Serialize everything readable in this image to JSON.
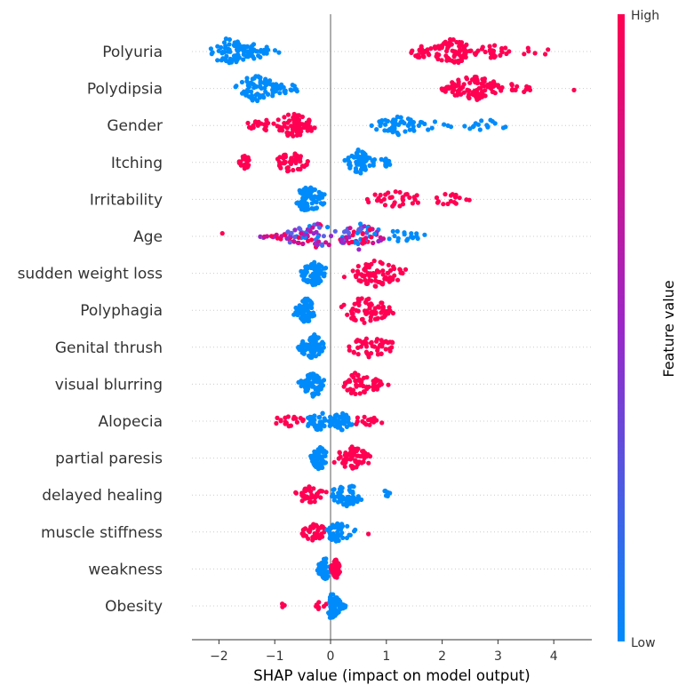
{
  "chart_data": {
    "type": "scatter",
    "subtype": "shap-beeswarm-summary",
    "xlabel": "SHAP value (impact on model output)",
    "xlim": [
      -2.5,
      4.7
    ],
    "xticks": [
      -2,
      -1,
      0,
      1,
      2,
      3,
      4
    ],
    "xtick_labels": [
      "−2",
      "−1",
      "0",
      "1",
      "2",
      "3",
      "4"
    ],
    "zero_line": 0,
    "colorbar": {
      "title": "Feature value",
      "high_label": "High",
      "low_label": "Low",
      "high_color": "#ff0052",
      "mid_color": "#9b27c8",
      "low_color": "#008bfb"
    },
    "features": [
      {
        "name": "Polyuria",
        "clusters": [
          [
            -2.2,
            -1.85,
            -1.2,
            0,
            70
          ],
          [
            -1.65,
            -1.4,
            -0.8,
            0,
            28
          ],
          [
            1.4,
            1.6,
            1.85,
            1,
            22
          ],
          [
            1.8,
            2.2,
            2.7,
            1,
            75
          ],
          [
            2.6,
            2.9,
            3.3,
            1,
            24
          ],
          [
            3.3,
            3.6,
            4.0,
            1,
            6
          ]
        ]
      },
      {
        "name": "Polydipsia",
        "clusters": [
          [
            -1.75,
            -1.35,
            -0.8,
            0,
            70
          ],
          [
            -1.2,
            -0.9,
            -0.55,
            0,
            16
          ],
          [
            1.9,
            2.1,
            2.4,
            1,
            18
          ],
          [
            2.1,
            2.55,
            3.2,
            1,
            85
          ],
          [
            3.1,
            3.3,
            3.7,
            1,
            12
          ],
          [
            4.35,
            4.35,
            4.4,
            1,
            1
          ]
        ]
      },
      {
        "name": "Gender",
        "clusters": [
          [
            -1.55,
            -1.2,
            -0.9,
            1,
            18
          ],
          [
            -1.0,
            -0.65,
            -0.25,
            1,
            75
          ],
          [
            0.7,
            1.2,
            1.6,
            0,
            48
          ],
          [
            1.5,
            1.8,
            2.3,
            0,
            10
          ],
          [
            2.3,
            2.8,
            3.3,
            0,
            16
          ]
        ]
      },
      {
        "name": "Itching",
        "clusters": [
          [
            -1.75,
            -1.55,
            -1.4,
            1,
            22
          ],
          [
            -1.0,
            -0.7,
            -0.35,
            1,
            48
          ],
          [
            0.2,
            0.5,
            0.8,
            0,
            65
          ],
          [
            0.9,
            1.0,
            1.15,
            0,
            10
          ]
        ]
      },
      {
        "name": "Irritability",
        "clusters": [
          [
            -0.7,
            -0.4,
            -0.05,
            0,
            80
          ],
          [
            0.5,
            1.2,
            1.7,
            1,
            32
          ],
          [
            1.7,
            2.1,
            2.6,
            1,
            16
          ]
        ]
      },
      {
        "name": "Age",
        "clusters": [
          [
            -1.95,
            -1.95,
            -1.9,
            1,
            1
          ],
          [
            -1.4,
            -0.2,
            0.0,
            2,
            75
          ],
          [
            0.0,
            0.5,
            1.0,
            2,
            70
          ],
          [
            0.95,
            1.2,
            1.7,
            0,
            18
          ]
        ]
      },
      {
        "name": "sudden weight loss",
        "clusters": [
          [
            -0.55,
            -0.3,
            -0.05,
            0,
            80
          ],
          [
            0.2,
            0.8,
            1.4,
            1,
            80
          ]
        ]
      },
      {
        "name": "Polyphagia",
        "clusters": [
          [
            -0.7,
            -0.45,
            -0.25,
            0,
            75
          ],
          [
            0.15,
            0.6,
            1.2,
            1,
            70
          ]
        ]
      },
      {
        "name": "Genital thrush",
        "clusters": [
          [
            -0.6,
            -0.3,
            -0.1,
            0,
            80
          ],
          [
            0.25,
            0.7,
            1.3,
            1,
            48
          ]
        ]
      },
      {
        "name": "visual blurring",
        "clusters": [
          [
            -0.6,
            -0.3,
            -0.1,
            0,
            80
          ],
          [
            0.15,
            0.45,
            1.1,
            1,
            55
          ]
        ]
      },
      {
        "name": "Alopecia",
        "clusters": [
          [
            -1.05,
            -0.75,
            -0.4,
            1,
            18
          ],
          [
            -0.5,
            -0.2,
            0.05,
            0,
            40
          ],
          [
            -0.05,
            0.2,
            0.4,
            0,
            42
          ],
          [
            0.4,
            0.65,
            0.95,
            1,
            16
          ]
        ]
      },
      {
        "name": "partial paresis",
        "clusters": [
          [
            -0.4,
            -0.2,
            -0.05,
            0,
            60
          ],
          [
            0.05,
            0.4,
            0.8,
            1,
            60
          ]
        ]
      },
      {
        "name": "delayed healing",
        "clusters": [
          [
            -0.65,
            -0.35,
            -0.05,
            1,
            40
          ],
          [
            -0.05,
            0.3,
            0.6,
            0,
            55
          ],
          [
            0.8,
            1.0,
            1.25,
            0,
            6
          ]
        ]
      },
      {
        "name": "muscle stiffness",
        "clusters": [
          [
            -0.55,
            -0.3,
            -0.05,
            1,
            40
          ],
          [
            -0.15,
            0.1,
            0.45,
            0,
            48
          ],
          [
            0.65,
            0.65,
            0.7,
            1,
            1
          ]
        ]
      },
      {
        "name": "weakness",
        "clusters": [
          [
            -0.25,
            -0.1,
            0.0,
            0,
            55
          ],
          [
            0.0,
            0.1,
            0.2,
            1,
            45
          ]
        ]
      },
      {
        "name": "Obesity",
        "clusters": [
          [
            -0.9,
            -0.85,
            -0.8,
            1,
            3
          ],
          [
            -0.4,
            -0.2,
            0.0,
            1,
            8
          ],
          [
            -0.05,
            0.02,
            0.3,
            0,
            90
          ]
        ]
      }
    ]
  }
}
